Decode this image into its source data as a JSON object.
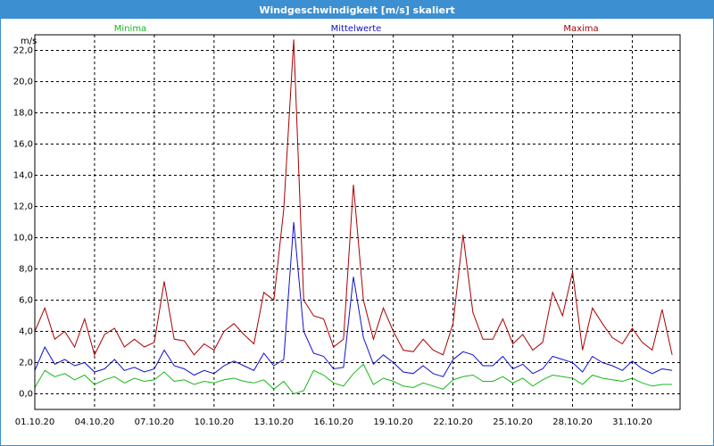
{
  "window": {
    "title": "Windgeschwindigkeit [m/s] skaliert"
  },
  "colors": {
    "minima": "#18b818",
    "mittel": "#1010d0",
    "maxima": "#a80000",
    "frame": "#3c8fd0"
  },
  "chart_data": {
    "type": "line",
    "title": "Windgeschwindigkeit [m/s] skaliert",
    "ylabel": "m/s",
    "ylim": [
      -1,
      23
    ],
    "xlim": [
      0,
      32.4
    ],
    "x_ticks": [
      {
        "x": 0,
        "label": "01.10.20"
      },
      {
        "x": 3,
        "label": "04.10.20"
      },
      {
        "x": 6,
        "label": "07.10.20"
      },
      {
        "x": 9,
        "label": "10.10.20"
      },
      {
        "x": 12,
        "label": "13.10.20"
      },
      {
        "x": 15,
        "label": "16.10.20"
      },
      {
        "x": 18,
        "label": "19.10.20"
      },
      {
        "x": 21,
        "label": "22.10.20"
      },
      {
        "x": 24,
        "label": "25.10.20"
      },
      {
        "x": 27,
        "label": "28.10.20"
      },
      {
        "x": 30,
        "label": "31.10.20"
      }
    ],
    "y_ticks": [
      {
        "v": 0,
        "label": "0,0"
      },
      {
        "v": 2,
        "label": "2,0"
      },
      {
        "v": 4,
        "label": "4,0"
      },
      {
        "v": 6,
        "label": "6,0"
      },
      {
        "v": 8,
        "label": "8,0"
      },
      {
        "v": 10,
        "label": "10,0"
      },
      {
        "v": 12,
        "label": "12,0"
      },
      {
        "v": 14,
        "label": "14,0"
      },
      {
        "v": 16,
        "label": "16,0"
      },
      {
        "v": 18,
        "label": "18,0"
      },
      {
        "v": 20,
        "label": "20,0"
      },
      {
        "v": 22,
        "label": "22,0"
      }
    ],
    "grid": true,
    "series": [
      {
        "name": "Minima",
        "color": "#18b818",
        "x": [
          0,
          0.5,
          1,
          1.5,
          2,
          2.5,
          3,
          3.5,
          4,
          4.5,
          5,
          5.5,
          6,
          6.5,
          7,
          7.5,
          8,
          8.5,
          9,
          9.5,
          10,
          10.5,
          11,
          11.5,
          12,
          12.5,
          13,
          13.5,
          14,
          14.5,
          15,
          15.5,
          16,
          16.5,
          17,
          17.5,
          18,
          18.5,
          19,
          19.5,
          20,
          20.5,
          21,
          21.5,
          22,
          22.5,
          23,
          23.5,
          24,
          24.5,
          25,
          25.5,
          26,
          26.5,
          27,
          27.5,
          28,
          28.5,
          29,
          29.5,
          30,
          30.5,
          31,
          31.5,
          32
        ],
        "values": [
          0.4,
          1.5,
          1.1,
          1.3,
          0.9,
          1.2,
          0.6,
          0.9,
          1.1,
          0.7,
          1.0,
          0.8,
          0.9,
          1.4,
          0.8,
          0.9,
          0.6,
          0.8,
          0.7,
          0.9,
          1.0,
          0.8,
          0.7,
          0.9,
          0.3,
          0.8,
          0.0,
          0.2,
          1.5,
          1.2,
          0.7,
          0.5,
          1.3,
          1.9,
          0.6,
          1.0,
          0.8,
          0.5,
          0.4,
          0.7,
          0.5,
          0.3,
          0.9,
          1.1,
          1.2,
          0.8,
          0.8,
          1.1,
          0.7,
          1.0,
          0.5,
          0.9,
          1.2,
          1.1,
          1.0,
          0.6,
          1.2,
          1.0,
          0.9,
          0.8,
          1.0,
          0.7,
          0.5,
          0.6,
          0.6
        ]
      },
      {
        "name": "Mittelwerte",
        "color": "#1010d0",
        "x": [
          0,
          0.5,
          1,
          1.5,
          2,
          2.5,
          3,
          3.5,
          4,
          4.5,
          5,
          5.5,
          6,
          6.5,
          7,
          7.5,
          8,
          8.5,
          9,
          9.5,
          10,
          10.5,
          11,
          11.5,
          12,
          12.5,
          13,
          13.5,
          14,
          14.5,
          15,
          15.5,
          16,
          16.5,
          17,
          17.5,
          18,
          18.5,
          19,
          19.5,
          20,
          20.5,
          21,
          21.5,
          22,
          22.5,
          23,
          23.5,
          24,
          24.5,
          25,
          25.5,
          26,
          26.5,
          27,
          27.5,
          28,
          28.5,
          29,
          29.5,
          30,
          30.5,
          31,
          31.5,
          32
        ],
        "values": [
          1.5,
          3.0,
          1.9,
          2.2,
          1.8,
          2.0,
          1.4,
          1.6,
          2.2,
          1.5,
          1.7,
          1.4,
          1.6,
          2.8,
          1.8,
          1.6,
          1.2,
          1.5,
          1.3,
          1.8,
          2.1,
          1.8,
          1.5,
          2.6,
          1.8,
          2.2,
          11.0,
          4.0,
          2.6,
          2.4,
          1.6,
          1.7,
          7.5,
          3.6,
          1.9,
          2.5,
          2.0,
          1.4,
          1.3,
          1.8,
          1.3,
          1.1,
          2.2,
          2.7,
          2.5,
          1.8,
          1.8,
          2.4,
          1.6,
          1.9,
          1.3,
          1.6,
          2.4,
          2.2,
          2.0,
          1.4,
          2.4,
          2.0,
          1.8,
          1.5,
          2.1,
          1.6,
          1.3,
          1.6,
          1.5
        ]
      },
      {
        "name": "Maxima",
        "color": "#a80000",
        "x": [
          0,
          0.5,
          1,
          1.5,
          2,
          2.5,
          3,
          3.5,
          4,
          4.5,
          5,
          5.5,
          6,
          6.5,
          7,
          7.5,
          8,
          8.5,
          9,
          9.5,
          10,
          10.5,
          11,
          11.5,
          12,
          12.5,
          13,
          13.5,
          14,
          14.5,
          15,
          15.5,
          16,
          16.5,
          17,
          17.5,
          18,
          18.5,
          19,
          19.5,
          20,
          20.5,
          21,
          21.5,
          22,
          22.5,
          23,
          23.5,
          24,
          24.5,
          25,
          25.5,
          26,
          26.5,
          27,
          27.5,
          28,
          28.5,
          29,
          29.5,
          30,
          30.5,
          31,
          31.5,
          32
        ],
        "values": [
          4.0,
          5.5,
          3.5,
          4.0,
          3.0,
          4.8,
          2.5,
          3.8,
          4.2,
          3.0,
          3.5,
          3.0,
          3.3,
          7.2,
          3.5,
          3.4,
          2.5,
          3.2,
          2.8,
          4.0,
          4.5,
          3.8,
          3.2,
          6.5,
          6.0,
          11.8,
          22.7,
          6.0,
          5.0,
          4.8,
          3.0,
          3.5,
          13.4,
          6.0,
          3.5,
          5.5,
          4.0,
          2.8,
          2.7,
          3.5,
          2.8,
          2.5,
          4.5,
          10.2,
          5.2,
          3.5,
          3.5,
          4.8,
          3.2,
          3.8,
          2.8,
          3.3,
          6.5,
          5.0,
          7.8,
          2.8,
          5.5,
          4.5,
          3.6,
          3.2,
          4.2,
          3.3,
          2.8,
          5.4,
          2.5
        ]
      }
    ]
  }
}
